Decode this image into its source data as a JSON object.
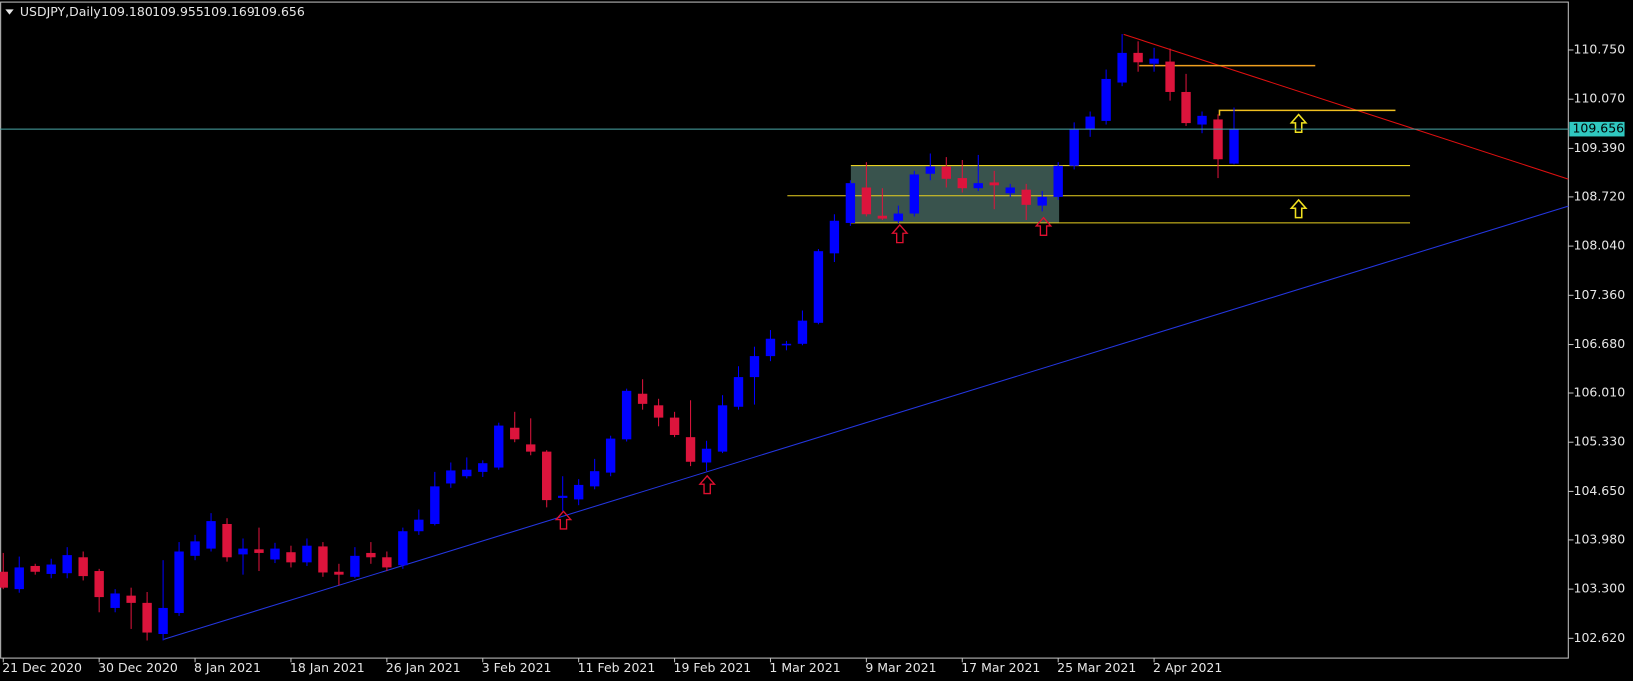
{
  "chart_data": {
    "type": "candlestick",
    "title": "USDJPY,Daily",
    "header_values": [
      "109.180",
      "109.955",
      "109.169",
      "109.656"
    ],
    "categories": [
      "21 Dec 2020",
      null,
      null,
      null,
      null,
      null,
      "30 Dec 2020",
      null,
      null,
      null,
      null,
      null,
      "8 Jan 2021",
      null,
      null,
      null,
      null,
      null,
      "18 Jan 2021",
      null,
      null,
      null,
      null,
      null,
      "26 Jan 2021",
      null,
      null,
      null,
      null,
      null,
      "3 Feb 2021",
      null,
      null,
      null,
      null,
      null,
      "11 Feb 2021",
      null,
      null,
      null,
      null,
      null,
      "19 Feb 2021",
      null,
      null,
      null,
      null,
      null,
      "1 Mar 2021",
      null,
      null,
      null,
      null,
      null,
      "9 Mar 2021",
      null,
      null,
      null,
      null,
      null,
      "17 Mar 2021",
      null,
      null,
      null,
      null,
      null,
      "25 Mar 2021",
      null,
      null,
      null,
      null,
      null,
      "2 Apr 2021",
      null,
      null,
      null,
      null,
      null
    ],
    "open": [
      103.54,
      103.3,
      103.62,
      103.51,
      103.52,
      103.74,
      103.55,
      103.04,
      103.21,
      103.11,
      102.68,
      102.97,
      103.76,
      103.86,
      104.2,
      103.78,
      103.85,
      103.71,
      103.81,
      103.67,
      103.89,
      103.54,
      103.47,
      103.8,
      103.74,
      103.63,
      104.1,
      104.2,
      104.76,
      104.86,
      104.92,
      104.98,
      105.53,
      105.3,
      105.2,
      104.56,
      104.54,
      104.72,
      104.91,
      105.37,
      106.0,
      105.84,
      105.67,
      105.4,
      105.05,
      105.2,
      105.82,
      106.23,
      106.52,
      106.67,
      106.69,
      106.98,
      107.94,
      108.36,
      108.85,
      108.46,
      108.39,
      108.49,
      109.04,
      109.14,
      108.98,
      108.84,
      108.92,
      108.77,
      108.82,
      108.6,
      108.72,
      109.15,
      109.65,
      109.77,
      110.3,
      110.71,
      110.56,
      110.59,
      110.17,
      109.72,
      109.79,
      109.18
    ],
    "high": [
      103.8,
      103.75,
      103.65,
      103.72,
      103.88,
      103.82,
      103.58,
      103.3,
      103.32,
      103.26,
      103.7,
      103.95,
      104.05,
      104.35,
      104.28,
      104.0,
      104.15,
      103.94,
      103.9,
      104.0,
      103.95,
      103.65,
      103.88,
      103.95,
      103.82,
      104.15,
      104.4,
      104.92,
      105.05,
      105.12,
      105.08,
      105.6,
      105.75,
      105.66,
      105.22,
      104.86,
      104.82,
      105.1,
      105.42,
      106.07,
      106.2,
      105.93,
      105.75,
      105.91,
      105.35,
      105.98,
      106.38,
      106.65,
      106.88,
      106.73,
      107.15,
      108.0,
      108.48,
      108.95,
      109.2,
      108.84,
      108.6,
      109.08,
      109.32,
      109.27,
      109.23,
      109.3,
      109.08,
      108.9,
      108.9,
      108.8,
      109.2,
      109.75,
      109.9,
      110.48,
      110.97,
      110.87,
      110.78,
      110.77,
      110.42,
      109.9,
      109.86,
      109.955
    ],
    "low": [
      103.3,
      103.25,
      103.5,
      103.45,
      103.45,
      103.42,
      102.98,
      102.98,
      102.75,
      102.59,
      102.59,
      102.93,
      103.7,
      103.82,
      103.68,
      103.5,
      103.55,
      103.66,
      103.6,
      103.62,
      103.47,
      103.35,
      103.45,
      103.65,
      103.55,
      103.58,
      104.05,
      104.18,
      104.7,
      104.83,
      104.85,
      104.95,
      105.33,
      105.15,
      104.43,
      104.38,
      104.46,
      104.68,
      104.86,
      105.34,
      105.78,
      105.55,
      105.4,
      105.0,
      104.93,
      105.18,
      105.78,
      105.85,
      106.45,
      106.6,
      106.67,
      106.96,
      107.82,
      108.32,
      108.45,
      108.4,
      108.36,
      108.45,
      108.95,
      108.85,
      108.78,
      108.8,
      108.55,
      108.72,
      108.4,
      108.52,
      108.68,
      109.1,
      109.55,
      109.72,
      110.25,
      110.45,
      110.45,
      110.05,
      109.7,
      109.6,
      108.98,
      109.169
    ],
    "close": [
      103.32,
      103.6,
      103.54,
      103.64,
      103.77,
      103.48,
      103.19,
      103.24,
      103.11,
      102.7,
      103.04,
      103.82,
      103.96,
      104.24,
      103.74,
      103.86,
      103.8,
      103.86,
      103.67,
      103.9,
      103.53,
      103.5,
      103.76,
      103.74,
      103.6,
      104.1,
      104.26,
      104.72,
      104.94,
      104.95,
      105.04,
      105.56,
      105.37,
      105.2,
      104.53,
      104.59,
      104.74,
      104.93,
      105.38,
      106.04,
      105.86,
      105.67,
      105.43,
      105.06,
      105.24,
      105.84,
      106.23,
      106.52,
      106.76,
      106.69,
      107.01,
      107.97,
      108.39,
      108.91,
      108.48,
      108.42,
      108.49,
      109.03,
      109.14,
      108.97,
      108.84,
      108.91,
      108.88,
      108.85,
      108.61,
      108.72,
      109.15,
      109.65,
      109.83,
      110.35,
      110.71,
      110.58,
      110.63,
      110.17,
      109.74,
      109.84,
      109.24,
      109.656
    ],
    "up_color": "#0000ff",
    "down_color": "#dc143c",
    "ylim": [
      102.347,
      111.412
    ],
    "yticks": [
      {
        "value": 110.75,
        "label": "110.750"
      },
      {
        "value": 110.07,
        "label": "110.070"
      },
      {
        "value": 109.39,
        "label": "109.390"
      },
      {
        "value": 108.72,
        "label": "108.720"
      },
      {
        "value": 108.04,
        "label": "108.040"
      },
      {
        "value": 107.36,
        "label": "107.360"
      },
      {
        "value": 106.68,
        "label": "106.680"
      },
      {
        "value": 106.01,
        "label": "106.010"
      },
      {
        "value": 105.33,
        "label": "105.330"
      },
      {
        "value": 104.65,
        "label": "104.650"
      },
      {
        "value": 103.98,
        "label": "103.980"
      },
      {
        "value": 103.3,
        "label": "103.300"
      },
      {
        "value": 102.62,
        "label": "102.620"
      }
    ],
    "grid": false
  }
}
